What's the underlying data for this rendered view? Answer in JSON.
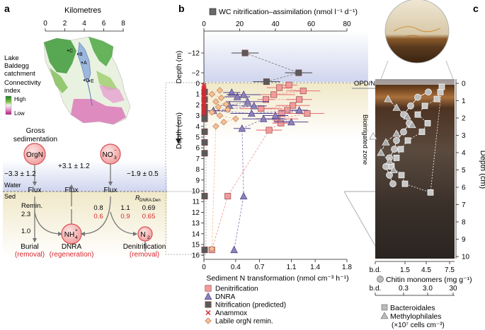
{
  "panel_a": {
    "label": "a",
    "km_title": "Kilometres",
    "km_ticks": [
      "0",
      "2",
      "4",
      "6",
      "8"
    ],
    "lake_label": [
      "Lake",
      "Baldegg",
      "catchment"
    ],
    "sites": [
      "C",
      "B",
      "A",
      "D",
      "E"
    ],
    "connectivity_title": [
      "Connectivity",
      "index"
    ],
    "legend_high": "High",
    "legend_low": "Low",
    "gross_sed": [
      "Gross",
      "sedimentation"
    ],
    "pools": {
      "orgn": "OrgN",
      "no3": "NO",
      "no3_sub": "3",
      "no3_sup": "−",
      "nh4": "NH",
      "nh4_sub": "4",
      "nh4_sup": "+",
      "n2": "N",
      "n2_sub": "2"
    },
    "flux_label": "Flux",
    "flux_values": {
      "orgn": "−3.3 ± 1.2",
      "nh4": "+3.1 ± 1.2",
      "no3": "−1.9 ± 0.5"
    },
    "water_label": "Water",
    "sed_label": "Sed",
    "remin_label": [
      "Remin.",
      "2.3"
    ],
    "rdnra_label": "R",
    "rdnra_sub": "DNRA:Den",
    "dnra_vals": {
      "left_black": "0.8",
      "left_red": "0.6",
      "mid_black": "1.1",
      "mid_red": "0.9",
      "right_black": "0.69",
      "right_red": "0.65"
    },
    "burial_value": "1.0",
    "burial": [
      "Burial",
      "(removal)"
    ],
    "dnra": [
      "DNRA",
      "(regeneration)"
    ],
    "denit": [
      "Denitrification",
      "(removal)"
    ],
    "colors": {
      "pool_fill": "#f4b2b0",
      "pool_stroke": "#d94f52",
      "red_text": "#d7282f",
      "water": "#c9d3ea",
      "sed": "#f1ead2"
    }
  },
  "panel_b": {
    "label": "b",
    "chart_data": {
      "type": "scatter",
      "top_axis": {
        "label": "WC nitrification–assimilation (nmol l⁻¹ d⁻¹)",
        "ticks": [
          0,
          20,
          40,
          60,
          80
        ],
        "range": [
          0,
          80
        ]
      },
      "bottom_axis": {
        "label": "Sediment N transformation (nmol cm⁻³ h⁻¹)",
        "ticks": [
          "0",
          "0.4",
          "0.7",
          "1.1",
          "1.4",
          "1.8"
        ],
        "range": [
          0,
          1.8
        ]
      },
      "water_depth_axis": {
        "label": "Depth (m)",
        "ticks": [
          -12,
          -2
        ]
      },
      "sediment_depth_axis": {
        "label": "Depth (cm)",
        "ticks": [
          0,
          1,
          2,
          3,
          4,
          5,
          6,
          7,
          8,
          9,
          10,
          11,
          12,
          13,
          14,
          15,
          16
        ],
        "range": [
          -0.3,
          16
        ]
      },
      "annotations": {
        "opd": "OPD/NPD",
        "bioirrigated": "Bioirrigated zone"
      },
      "series": [
        {
          "name": "Denitrification",
          "color": "#f29a9c",
          "marker": "square",
          "points": [
            [
              1.07,
              0.15
            ],
            [
              0.95,
              0.4
            ],
            [
              1.25,
              0.7
            ],
            [
              0.88,
              1.05
            ],
            [
              0.78,
              1.5
            ],
            [
              1.2,
              1.5
            ],
            [
              1.12,
              2.05
            ],
            [
              0.72,
              2.35
            ],
            [
              1.05,
              2.5
            ],
            [
              0.98,
              2.8
            ],
            [
              1.3,
              2.8
            ],
            [
              0.92,
              3.3
            ],
            [
              0.97,
              3.7
            ],
            [
              0.82,
              4.35
            ],
            [
              0.3,
              10.5
            ],
            [
              0.1,
              15.5
            ]
          ]
        },
        {
          "name": "DNRA",
          "color": "#8d82bd",
          "marker": "triangle",
          "points": [
            [
              0.35,
              0.85
            ],
            [
              0.42,
              1.25
            ],
            [
              0.5,
              1.05
            ],
            [
              0.55,
              1.7
            ],
            [
              0.32,
              2.05
            ],
            [
              0.63,
              2.1
            ],
            [
              0.12,
              2.55
            ],
            [
              0.6,
              2.8
            ],
            [
              1.2,
              2.5
            ],
            [
              0.9,
              3.0
            ],
            [
              1.1,
              3.6
            ],
            [
              0.75,
              3.3
            ],
            [
              0.48,
              4.2
            ],
            [
              0.5,
              10.5
            ],
            [
              0.38,
              15.5
            ]
          ]
        },
        {
          "name": "Nitrification (predicted)",
          "color": "#5a5a5a",
          "marker": "square",
          "points_wc": [
            [
              23,
              -12
            ],
            [
              53,
              -2
            ],
            [
              35,
              -0.2
            ]
          ],
          "points_sed": [
            [
              0,
              0.8
            ],
            [
              0,
              1.5
            ],
            [
              0,
              2.2
            ],
            [
              0,
              2.8
            ],
            [
              0,
              3.3
            ],
            [
              0,
              4.5
            ],
            [
              0,
              5.5
            ],
            [
              0,
              6.5
            ],
            [
              0,
              10.5
            ],
            [
              0,
              15.5
            ]
          ]
        },
        {
          "name": "Anammox",
          "color": "#d7282f",
          "marker": "cross",
          "points": [
            [
              0,
              0.2
            ],
            [
              0,
              0.4
            ],
            [
              0,
              0.6
            ],
            [
              0,
              0.8
            ],
            [
              0,
              1.0
            ],
            [
              0,
              1.2
            ],
            [
              0,
              1.4
            ],
            [
              0,
              1.6
            ],
            [
              0,
              1.8
            ],
            [
              0,
              2.0
            ],
            [
              0,
              2.2
            ],
            [
              0,
              2.4
            ],
            [
              0,
              2.6
            ],
            [
              0,
              2.8
            ]
          ]
        },
        {
          "name": "Labile orgN remin.",
          "color": "#f4bf96",
          "marker": "diamond",
          "points": [
            [
              0.2,
              0.65
            ],
            [
              0.1,
              1.0
            ],
            [
              0.22,
              1.35
            ],
            [
              0.15,
              1.7
            ],
            [
              0.28,
              1.95
            ],
            [
              0.18,
              2.2
            ],
            [
              0.3,
              2.45
            ],
            [
              0.1,
              2.7
            ],
            [
              0.2,
              3.0
            ],
            [
              0.4,
              3.3
            ],
            [
              0.25,
              3.6
            ],
            [
              0.15,
              4.0
            ],
            [
              0.1,
              15.4
            ]
          ]
        }
      ]
    }
  },
  "panel_c": {
    "label": "c",
    "depth_label": "Depth (cm)",
    "depth_ticks": [
      "0",
      "1",
      "2",
      "3",
      "4",
      "5",
      "6",
      "7",
      "8",
      "9",
      "10"
    ],
    "chitin_axis": {
      "ticks": [
        "b.d.",
        "1.5",
        "4.5",
        "7.5"
      ],
      "label": "Chitin monomers (mg g⁻¹)"
    },
    "cells_axis": {
      "ticks": [
        "b.d.",
        "0.3",
        "3.0",
        "30"
      ]
    },
    "legend": [
      "Bacteroidales",
      "Methylophilales"
    ],
    "legend_unit": "(×10⁷ cells cm⁻³)"
  }
}
